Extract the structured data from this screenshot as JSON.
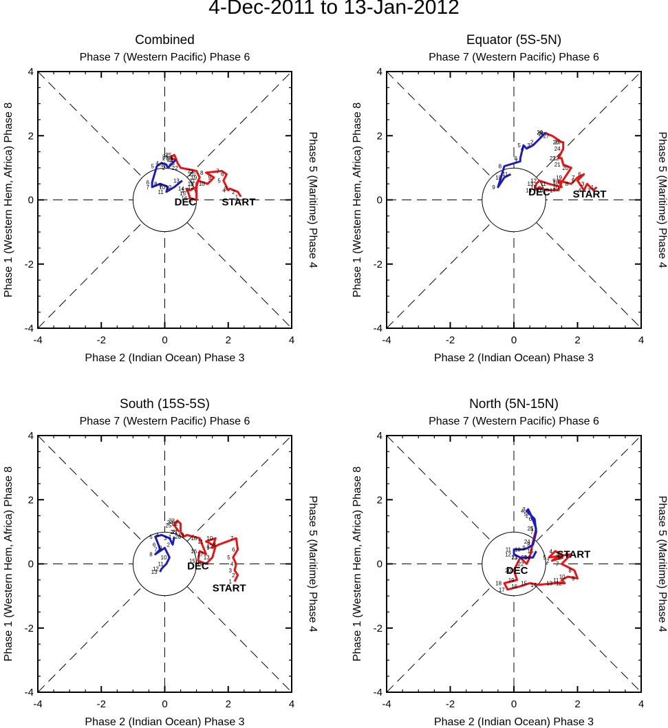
{
  "figure": {
    "title": "4-Dec-2011 to 13-Jan-2012"
  },
  "labels": {
    "top": "Phase 7 (Western Pacific) Phase 6",
    "bottom": "Phase 2 (Indian Ocean) Phase 3",
    "left": "Phase 1 (Western Hem, Africa) Phase 8",
    "right": "Phase 5 (Maritime) Phase 4",
    "start": "START",
    "month_marker": "DEC"
  },
  "colors": {
    "dec": "#ee1111",
    "jan": "#1a1acc",
    "axes": "#000000"
  },
  "chart_data": [
    {
      "type": "line",
      "title": "Combined",
      "xlim": [
        -4,
        4
      ],
      "ylim": [
        -4,
        4
      ],
      "xticks": [
        -4,
        -2,
        0,
        2,
        4
      ],
      "yticks": [
        -4,
        -2,
        0,
        2,
        4
      ],
      "series": [
        {
          "name": "December",
          "color": "#ee1111",
          "x": [
            2.4,
            2.3,
            2.05,
            2.0,
            1.85,
            1.95,
            1.8,
            1.3,
            1.55,
            1.35,
            1.05,
            1.0,
            0.8,
            0.7,
            0.75,
            0.8,
            1.0,
            1.0,
            1.1,
            1.05,
            1.0,
            0.5,
            0.4,
            0.35,
            0.3,
            0.2,
            0.2,
            0.35
          ],
          "y": [
            0.1,
            0.25,
            0.35,
            0.3,
            0.6,
            0.8,
            0.9,
            0.85,
            0.7,
            0.5,
            0.6,
            0.4,
            0.3,
            0.35,
            0.2,
            0.05,
            0.0,
            0.5,
            0.7,
            0.8,
            0.9,
            1.0,
            1.15,
            1.3,
            1.4,
            1.35,
            1.3,
            1.25
          ]
        },
        {
          "name": "January",
          "color": "#1a1acc",
          "x": [
            0.35,
            0.1,
            0.05,
            -0.1,
            -0.25,
            -0.4,
            -0.4,
            -0.15,
            0.0,
            0.1,
            0.05,
            0.3,
            0.55
          ],
          "y": [
            1.25,
            1.0,
            1.1,
            1.15,
            1.05,
            0.55,
            0.4,
            0.5,
            0.45,
            0.4,
            0.25,
            0.4,
            0.6
          ]
        }
      ],
      "point_labels": [
        "1",
        "2",
        "3",
        "4",
        "5",
        "6",
        "7",
        "8",
        "9",
        "10",
        "11",
        "12",
        "13",
        "14",
        "15",
        "16",
        "17",
        "18",
        "19",
        "20",
        "21",
        "22",
        "23",
        "24",
        "25",
        "26",
        "27",
        "28",
        "29",
        "30",
        "31"
      ],
      "start": [
        2.4,
        0.1
      ],
      "start_label_at": [
        1.8,
        -0.06
      ],
      "dec_label_at": [
        0.65,
        -0.06
      ]
    },
    {
      "type": "line",
      "title": "Equator (5S-5N)",
      "xlim": [
        -4,
        4
      ],
      "ylim": [
        -4,
        4
      ],
      "xticks": [
        -4,
        -2,
        0,
        2,
        4
      ],
      "yticks": [
        -4,
        -2,
        0,
        2,
        4
      ],
      "series": [
        {
          "name": "December",
          "color": "#ee1111",
          "x": [
            2.6,
            2.5,
            2.3,
            2.2,
            2.0,
            2.2,
            2.0,
            1.8,
            1.4,
            1.5,
            1.1,
            0.8,
            0.7,
            0.65,
            0.8,
            1.0,
            1.4,
            1.5,
            1.6,
            1.8,
            1.55,
            1.5,
            1.4,
            1.55,
            1.55,
            1.5,
            1.2,
            1.05,
            1.0,
            1.0
          ],
          "y": [
            0.4,
            0.3,
            0.5,
            0.3,
            0.6,
            0.8,
            0.7,
            0.5,
            0.6,
            0.4,
            0.5,
            0.6,
            0.5,
            0.3,
            0.4,
            0.3,
            0.3,
            0.55,
            0.7,
            1.0,
            1.1,
            1.3,
            1.3,
            1.6,
            1.8,
            1.8,
            2.0,
            2.05,
            2.1,
            2.1
          ]
        },
        {
          "name": "January",
          "color": "#1a1acc",
          "x": [
            1.0,
            0.7,
            0.6,
            0.4,
            0.3,
            0.2,
            0.2,
            -0.3,
            -0.5,
            -0.3,
            -0.1
          ],
          "y": [
            2.1,
            1.8,
            1.7,
            1.6,
            1.7,
            1.3,
            1.2,
            1.05,
            0.4,
            0.7,
            0.8
          ]
        }
      ],
      "point_labels": [
        "1",
        "2",
        "3",
        "4",
        "5",
        "6",
        "7",
        "8",
        "9",
        "10",
        "11",
        "12",
        "13",
        "14",
        "15",
        "16",
        "17",
        "18",
        "19",
        "20",
        "21",
        "22",
        "23",
        "24",
        "25",
        "26",
        "27",
        "28",
        "29",
        "30",
        "31"
      ],
      "start": [
        2.6,
        0.4
      ],
      "start_label_at": [
        1.85,
        0.18
      ],
      "dec_label_at": [
        0.8,
        0.25
      ]
    },
    {
      "type": "line",
      "title": "South (15S-5S)",
      "xlim": [
        -4,
        4
      ],
      "ylim": [
        -4,
        4
      ],
      "xticks": [
        -4,
        -2,
        0,
        2,
        4
      ],
      "yticks": [
        -4,
        -2,
        0,
        2,
        4
      ],
      "series": [
        {
          "name": "December",
          "color": "#ee1111",
          "x": [
            2.2,
            2.3,
            2.2,
            2.25,
            2.15,
            2.3,
            2.25,
            1.7,
            1.5,
            1.6,
            1.3,
            1.6,
            1.5,
            1.3,
            1.05,
            1.1,
            1.3,
            1.1,
            0.7,
            0.6,
            0.5,
            0.5,
            0.4,
            0.35,
            0.3,
            0.45
          ],
          "y": [
            -0.55,
            -0.35,
            -0.2,
            0.0,
            0.2,
            0.45,
            0.8,
            0.6,
            0.5,
            0.8,
            0.7,
            0.55,
            0.2,
            0.0,
            0.1,
            0.4,
            0.3,
            0.8,
            0.9,
            0.85,
            1.0,
            1.25,
            1.35,
            1.3,
            1.2,
            1.0
          ]
        },
        {
          "name": "January",
          "color": "#1a1acc",
          "x": [
            0.3,
            0.25,
            0.15,
            -0.1,
            -0.3,
            -0.2,
            -0.15,
            -0.3,
            0.0,
            0.15,
            0.05,
            -0.1,
            -0.15
          ],
          "y": [
            0.85,
            0.6,
            0.8,
            0.9,
            0.85,
            0.6,
            0.45,
            0.3,
            0.5,
            0.2,
            0.0,
            -0.15,
            -0.25
          ]
        }
      ],
      "point_labels": [
        "1",
        "2",
        "3",
        "4",
        "5",
        "6",
        "7",
        "8",
        "9",
        "10",
        "11",
        "12",
        "13",
        "14",
        "15",
        "16",
        "17",
        "18",
        "19",
        "20",
        "21",
        "22",
        "23",
        "24",
        "25",
        "26",
        "27",
        "28",
        "29",
        "30",
        "31"
      ],
      "start": [
        2.2,
        -0.55
      ],
      "start_label_at": [
        1.5,
        -0.75
      ],
      "dec_label_at": [
        1.05,
        -0.06
      ]
    },
    {
      "type": "line",
      "title": "North (5N-15N)",
      "xlim": [
        -4,
        4
      ],
      "ylim": [
        -4,
        4
      ],
      "xticks": [
        -4,
        -2,
        0,
        2,
        4
      ],
      "yticks": [
        -4,
        -2,
        0,
        2,
        4
      ],
      "series": [
        {
          "name": "December",
          "color": "#ee1111",
          "x": [
            1.55,
            1.2,
            1.5,
            1.3,
            1.1,
            1.8,
            1.5,
            1.9,
            2.0,
            1.7,
            1.5,
            1.6,
            1.3,
            0.8,
            0.5,
            0.2,
            -0.2,
            -0.3,
            0.1,
            0.0,
            0.2,
            0.4,
            0.5,
            0.6,
            0.7
          ],
          "y": [
            0.2,
            0.1,
            0.3,
            0.4,
            0.2,
            0.3,
            0.0,
            -0.2,
            -0.45,
            -0.4,
            -0.5,
            -0.6,
            -0.6,
            -0.65,
            -0.6,
            -0.7,
            -0.8,
            -0.6,
            -0.5,
            -0.2,
            0.2,
            0.0,
            0.2,
            0.7,
            1.1
          ]
        },
        {
          "name": "January",
          "color": "#1a1acc",
          "x": [
            0.7,
            0.55,
            0.45,
            0.4,
            0.5,
            0.65,
            0.7,
            0.6,
            0.45,
            0.3,
            0.0,
            0.0,
            0.2,
            0.6,
            0.7
          ],
          "y": [
            1.1,
            1.5,
            1.7,
            1.65,
            1.55,
            1.4,
            1.0,
            0.6,
            0.5,
            0.45,
            0.45,
            0.3,
            0.2,
            0.2,
            0.4
          ]
        }
      ],
      "point_labels": [
        "1",
        "2",
        "3",
        "4",
        "5",
        "6",
        "7",
        "8",
        "9",
        "10",
        "11",
        "12",
        "13",
        "14",
        "15",
        "16",
        "17",
        "18",
        "19",
        "20",
        "21",
        "22",
        "23",
        "24",
        "25",
        "26",
        "27",
        "28",
        "29",
        "30",
        "31"
      ],
      "start": [
        1.55,
        0.2
      ],
      "start_label_at": [
        1.35,
        0.3
      ],
      "dec_label_at": [
        0.1,
        -0.2
      ]
    }
  ]
}
